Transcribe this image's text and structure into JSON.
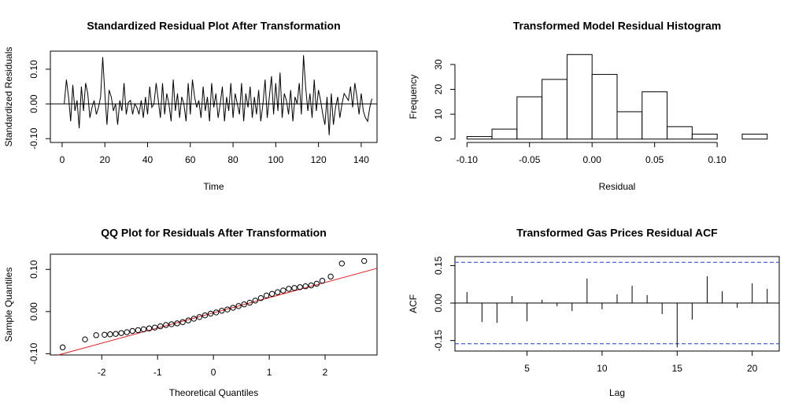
{
  "chart_data": [
    {
      "type": "line",
      "title": "Standardized Residual Plot After Transformation",
      "xlabel": "Time",
      "ylabel": "Standardized Residuals",
      "box": true,
      "color": "#000000",
      "hline": 0,
      "x": [
        1,
        2,
        3,
        4,
        5,
        6,
        7,
        8,
        9,
        10,
        11,
        12,
        13,
        14,
        15,
        16,
        17,
        18,
        19,
        20,
        21,
        22,
        23,
        24,
        25,
        26,
        27,
        28,
        29,
        30,
        31,
        32,
        33,
        34,
        35,
        36,
        37,
        38,
        39,
        40,
        41,
        42,
        43,
        44,
        45,
        46,
        47,
        48,
        49,
        50,
        51,
        52,
        53,
        54,
        55,
        56,
        57,
        58,
        59,
        60,
        61,
        62,
        63,
        64,
        65,
        66,
        67,
        68,
        69,
        70,
        71,
        72,
        73,
        74,
        75,
        76,
        77,
        78,
        79,
        80,
        81,
        82,
        83,
        84,
        85,
        86,
        87,
        88,
        89,
        90,
        91,
        92,
        93,
        94,
        95,
        96,
        97,
        98,
        99,
        100,
        101,
        102,
        103,
        104,
        105,
        106,
        107,
        108,
        109,
        110,
        111,
        112,
        113,
        114,
        115,
        116,
        117,
        118,
        119,
        120,
        121,
        122,
        123,
        124,
        125,
        126,
        127,
        128,
        129,
        130,
        131,
        132,
        133,
        134,
        135,
        136,
        137,
        138,
        139,
        140,
        141,
        142,
        143,
        144,
        145
      ],
      "values": [
        0.0,
        0.07,
        0.02,
        -0.05,
        0.055,
        -0.02,
        0.01,
        -0.07,
        0.05,
        -0.02,
        0.06,
        0.03,
        -0.04,
        -0.01,
        0.01,
        -0.03,
        -0.01,
        0.02,
        0.135,
        0.03,
        -0.06,
        0.04,
        0.02,
        -0.02,
        0.0,
        -0.06,
        0.01,
        -0.02,
        0.06,
        -0.03,
        0.005,
        0.01,
        -0.03,
        0.0,
        -0.01,
        -0.03,
        0.01,
        -0.04,
        0.02,
        -0.03,
        0.05,
        -0.01,
        0.0,
        0.06,
        0.01,
        -0.04,
        0.06,
        -0.03,
        0.03,
        0.0,
        -0.05,
        0.07,
        -0.02,
        0.03,
        -0.04,
        0.02,
        0.0,
        -0.05,
        0.06,
        -0.03,
        0.07,
        0.02,
        -0.01,
        0.01,
        -0.04,
        0.05,
        -0.02,
        0.02,
        -0.05,
        0.06,
        -0.01,
        0.03,
        -0.04,
        0.0,
        0.05,
        -0.05,
        0.02,
        -0.02,
        0.06,
        -0.04,
        0.03,
        0.0,
        -0.03,
        0.06,
        -0.05,
        0.03,
        -0.01,
        0.05,
        -0.04,
        0.02,
        -0.03,
        0.04,
        -0.05,
        0.0,
        0.07,
        -0.04,
        0.02,
        0.08,
        -0.03,
        0.06,
        -0.02,
        0.09,
        -0.04,
        0.03,
        0.01,
        -0.03,
        0.04,
        -0.05,
        0.02,
        0.0,
        0.06,
        -0.03,
        0.14,
        0.05,
        -0.02,
        0.03,
        -0.04,
        0.07,
        -0.02,
        0.04,
        0.01,
        -0.03,
        -0.06,
        0.02,
        -0.09,
        0.03,
        -0.06,
        -0.01,
        0.02,
        -0.04,
        0.0,
        0.03,
        0.02,
        0.01,
        0.05,
        -0.01,
        0.06,
        0.02,
        -0.03,
        0.03,
        -0.02,
        -0.04,
        -0.05,
        -0.01,
        0.015
      ],
      "xlim": [
        -5.5,
        147.4
      ],
      "xticks": [
        0,
        20,
        40,
        60,
        80,
        100,
        120,
        140
      ],
      "ylim": [
        -0.111,
        0.152
      ],
      "yticks": [
        {
          "value": -0.1,
          "label": "-0.10"
        },
        {
          "value": 0,
          "label": "0.00"
        },
        {
          "value": 0.1,
          "label": "0.10"
        }
      ]
    },
    {
      "type": "histogram",
      "title": "Transformed Model Residual Histogram",
      "xlabel": "Residual",
      "ylabel": "Frequency",
      "box": false,
      "color": "#ffffff",
      "bins": [
        -0.1,
        -0.08,
        -0.06,
        -0.04,
        -0.02,
        0,
        0.02,
        0.04,
        0.06,
        0.08,
        0.1,
        0.12,
        0.14
      ],
      "values": [
        1,
        4,
        17,
        24,
        34,
        26,
        11,
        19,
        5,
        2,
        0,
        2
      ],
      "xlim": [
        -0.1096,
        0.1496
      ],
      "xticks": [
        {
          "value": -0.1,
          "label": "-0.10"
        },
        {
          "value": -0.05,
          "label": "-0.05"
        },
        {
          "value": 0,
          "label": "0.00"
        },
        {
          "value": 0.05,
          "label": "0.05"
        },
        {
          "value": 0.1,
          "label": "0.10"
        }
      ],
      "ylim": [
        -1.36,
        35.36
      ],
      "yticks": [
        0,
        10,
        20,
        30
      ]
    },
    {
      "type": "scatter",
      "title": "QQ Plot for Residuals After Transformation",
      "xlabel": "Theoretical Quantiles",
      "ylabel": "Sample Quantiles",
      "box": true,
      "color": "#000000",
      "qq_line": {
        "intercept": -0.003,
        "slope": 0.036,
        "color": "#e41a1c"
      },
      "x": [
        -2.7,
        -2.3,
        -2.1,
        -1.95,
        -1.85,
        -1.75,
        -1.65,
        -1.55,
        -1.45,
        -1.35,
        -1.25,
        -1.15,
        -1.05,
        -0.95,
        -0.85,
        -0.75,
        -0.65,
        -0.55,
        -0.45,
        -0.35,
        -0.25,
        -0.15,
        -0.05,
        0.05,
        0.15,
        0.25,
        0.35,
        0.45,
        0.55,
        0.65,
        0.75,
        0.85,
        0.95,
        1.05,
        1.15,
        1.25,
        1.35,
        1.45,
        1.55,
        1.65,
        1.75,
        1.85,
        1.95,
        2.1,
        2.3,
        2.7
      ],
      "values": [
        -0.085,
        -0.066,
        -0.056,
        -0.055,
        -0.054,
        -0.053,
        -0.051,
        -0.049,
        -0.046,
        -0.044,
        -0.042,
        -0.04,
        -0.038,
        -0.035,
        -0.032,
        -0.03,
        -0.028,
        -0.025,
        -0.021,
        -0.017,
        -0.013,
        -0.009,
        -0.005,
        -0.002,
        0.002,
        0.005,
        0.009,
        0.013,
        0.017,
        0.021,
        0.026,
        0.032,
        0.038,
        0.042,
        0.046,
        0.05,
        0.054,
        0.056,
        0.058,
        0.06,
        0.062,
        0.066,
        0.073,
        0.083,
        0.114,
        0.12
      ],
      "xlim": [
        -2.92,
        2.93
      ],
      "xticks": [
        -2,
        -1,
        0,
        1,
        2
      ],
      "ylim": [
        -0.103,
        0.136
      ],
      "yticks": [
        {
          "value": -0.1,
          "label": "-0.10"
        },
        {
          "value": 0,
          "label": "0.00"
        },
        {
          "value": 0.1,
          "label": "0.10"
        }
      ]
    },
    {
      "type": "acf",
      "title": "Transformed Gas Prices Residual ACF",
      "xlabel": "Lag",
      "ylabel": "ACF",
      "box": true,
      "color": "#000000",
      "hline": 0,
      "ci": {
        "value": 0.163,
        "color": "#1f3fd6"
      },
      "x": [
        1,
        2,
        3,
        4,
        5,
        6,
        7,
        8,
        9,
        10,
        11,
        12,
        13,
        14,
        15,
        16,
        17,
        18,
        19,
        20,
        21
      ],
      "values": [
        0.044,
        -0.076,
        -0.079,
        0.028,
        -0.073,
        0.013,
        -0.013,
        -0.032,
        0.098,
        -0.025,
        0.035,
        0.069,
        0.032,
        -0.044,
        -0.177,
        -0.066,
        0.107,
        0.047,
        -0.019,
        0.079,
        0.057
      ],
      "xlim": [
        0.2,
        21.8
      ],
      "xticks": [
        5,
        10,
        15,
        20
      ],
      "ylim": [
        -0.192,
        0.186
      ],
      "yticks": [
        {
          "value": -0.15,
          "label": "-0.15"
        },
        {
          "value": 0,
          "label": "0.00"
        },
        {
          "value": 0.15,
          "label": "0.15"
        }
      ]
    }
  ]
}
